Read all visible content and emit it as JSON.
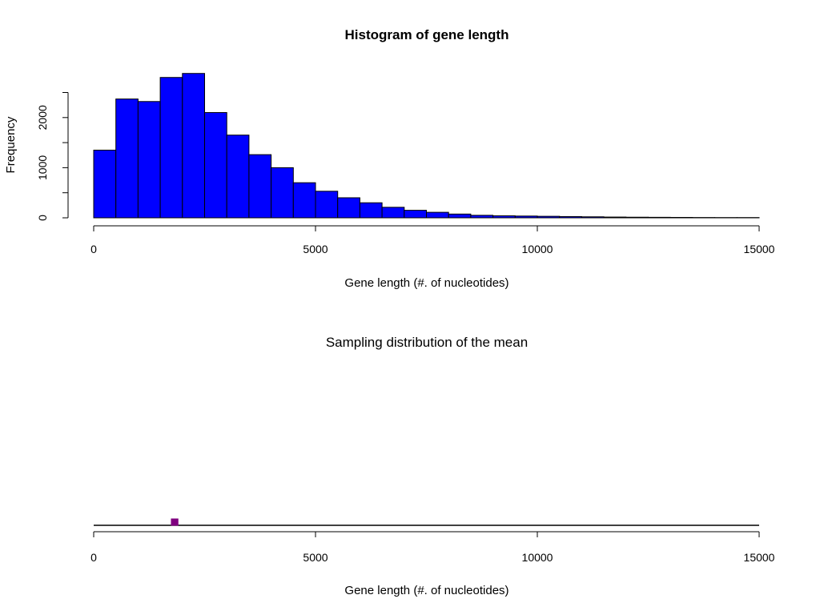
{
  "chart_data": [
    {
      "type": "bar",
      "title": "Histogram of gene length",
      "xlabel": "Gene length (#. of nucleotides)",
      "ylabel": "Frequency",
      "xlim": [
        0,
        15000
      ],
      "ylim": [
        0,
        2500
      ],
      "x_ticks": [
        "0",
        "5000",
        "10000",
        "15000"
      ],
      "y_ticks": [
        "0",
        "1000",
        "2000"
      ],
      "bin_width": 500,
      "bins_start": 0,
      "values": [
        1350,
        2370,
        2320,
        2800,
        2880,
        2100,
        1650,
        1260,
        1000,
        700,
        530,
        400,
        300,
        210,
        150,
        110,
        75,
        50,
        40,
        35,
        30,
        25,
        20,
        15,
        12,
        10,
        8,
        6,
        5,
        5
      ],
      "colors": {
        "fill": "#0000ff",
        "border": "#000000"
      },
      "grid": false,
      "legend": "none"
    },
    {
      "type": "bar",
      "title": "Sampling distribution of the mean",
      "xlabel": "Gene length (#. of nucleotides)",
      "ylabel": "",
      "xlim": [
        0,
        15000
      ],
      "x_ticks": [
        "0",
        "5000",
        "10000",
        "15000"
      ],
      "bins": [
        {
          "start": 1750,
          "end": 1900,
          "value": 1
        }
      ],
      "colors": {
        "fill": "#800080",
        "border": "#800080"
      },
      "grid": false,
      "legend": "none"
    }
  ]
}
